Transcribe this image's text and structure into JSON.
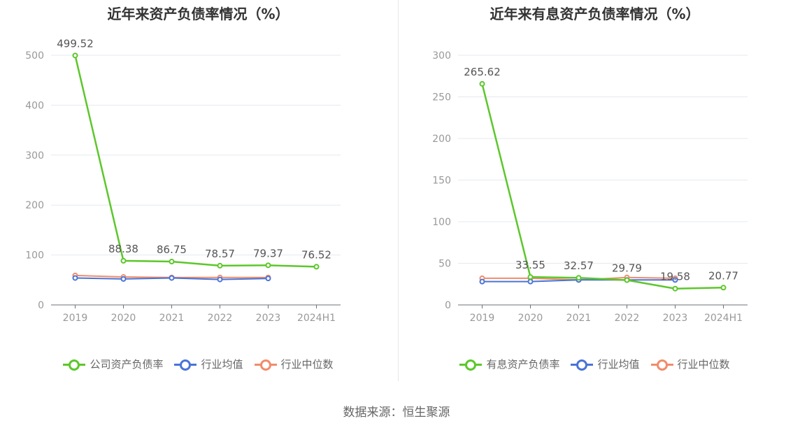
{
  "source_text": "数据来源：恒生聚源",
  "chart_data": [
    {
      "type": "line",
      "title": "近年来资产负债率情况（%）",
      "categories": [
        "2019",
        "2020",
        "2021",
        "2022",
        "2023",
        "2024H1"
      ],
      "ylim": [
        0,
        500
      ],
      "yticks": [
        "0",
        "100",
        "200",
        "300",
        "400",
        "500"
      ],
      "grid": true,
      "legend_position": "bottom",
      "series": [
        {
          "name": "公司资产负债率",
          "color": "#5cc72b",
          "values": [
            499.52,
            88.38,
            86.75,
            78.57,
            79.37,
            76.52
          ],
          "labels": [
            "499.52",
            "88.38",
            "86.75",
            "78.57",
            "79.37",
            "76.52"
          ]
        },
        {
          "name": "行业均值",
          "color": "#4a74d6",
          "values": [
            54,
            52,
            54,
            51,
            53,
            null
          ]
        },
        {
          "name": "行业中位数",
          "color": "#f08c6c",
          "values": [
            59,
            56,
            55,
            55,
            55,
            null
          ]
        }
      ]
    },
    {
      "type": "line",
      "title": "近年来有息资产负债率情况（%）",
      "categories": [
        "2019",
        "2020",
        "2021",
        "2022",
        "2023",
        "2024H1"
      ],
      "ylim": [
        0,
        300
      ],
      "yticks": [
        "0",
        "50",
        "100",
        "150",
        "200",
        "250",
        "300"
      ],
      "grid": true,
      "legend_position": "bottom",
      "series": [
        {
          "name": "有息资产负债率",
          "color": "#5cc72b",
          "values": [
            265.62,
            33.55,
            32.57,
            29.79,
            19.58,
            20.77
          ],
          "labels": [
            "265.62",
            "33.55",
            "32.57",
            "29.79",
            "19.58",
            "20.77"
          ]
        },
        {
          "name": "行业均值",
          "color": "#4a74d6",
          "values": [
            28,
            28,
            30,
            30,
            30,
            null
          ]
        },
        {
          "name": "行业中位数",
          "color": "#f08c6c",
          "values": [
            32,
            32,
            30,
            33,
            32,
            null
          ]
        }
      ]
    }
  ]
}
